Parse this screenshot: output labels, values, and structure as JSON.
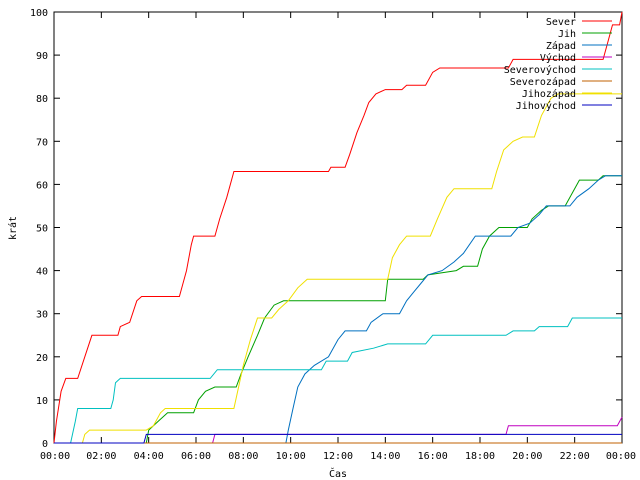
{
  "chart_data": {
    "type": "line",
    "xlabel": "Čas",
    "ylabel": "krát",
    "xlim": [
      0,
      24
    ],
    "ylim": [
      0,
      100
    ],
    "x_ticks": [
      "00:00",
      "02:00",
      "04:00",
      "06:00",
      "08:00",
      "10:00",
      "12:00",
      "14:00",
      "16:00",
      "18:00",
      "20:00",
      "22:00",
      "00:00"
    ],
    "y_ticks": [
      "0",
      "10",
      "20",
      "30",
      "40",
      "50",
      "60",
      "70",
      "80",
      "90",
      "100"
    ],
    "grid": false,
    "legend_position": "top-right",
    "series": [
      {
        "name": "Sever",
        "color": "#ff0000",
        "points": [
          [
            0,
            0
          ],
          [
            0.1,
            5
          ],
          [
            0.3,
            12
          ],
          [
            0.5,
            15
          ],
          [
            1.0,
            15
          ],
          [
            1.3,
            20
          ],
          [
            1.6,
            25
          ],
          [
            2.7,
            25
          ],
          [
            2.8,
            27
          ],
          [
            3.2,
            28
          ],
          [
            3.5,
            33
          ],
          [
            3.7,
            34
          ],
          [
            5.3,
            34
          ],
          [
            5.6,
            40
          ],
          [
            5.8,
            46
          ],
          [
            5.9,
            48
          ],
          [
            6.8,
            48
          ],
          [
            7.0,
            52
          ],
          [
            7.3,
            57
          ],
          [
            7.6,
            63
          ],
          [
            11.6,
            63
          ],
          [
            11.7,
            64
          ],
          [
            12.3,
            64
          ],
          [
            12.5,
            67
          ],
          [
            12.8,
            72
          ],
          [
            13.1,
            76
          ],
          [
            13.3,
            79
          ],
          [
            13.6,
            81
          ],
          [
            14.0,
            82
          ],
          [
            14.7,
            82
          ],
          [
            14.9,
            83
          ],
          [
            15.7,
            83
          ],
          [
            16.0,
            86
          ],
          [
            16.3,
            87
          ],
          [
            19.2,
            87
          ],
          [
            19.4,
            89
          ],
          [
            23.2,
            89
          ],
          [
            23.4,
            93
          ],
          [
            23.6,
            97
          ],
          [
            23.9,
            97
          ],
          [
            24,
            100
          ]
        ]
      },
      {
        "name": "Jih",
        "color": "#00a000",
        "points": [
          [
            0,
            0
          ],
          [
            3.9,
            0
          ],
          [
            4.0,
            3
          ],
          [
            4.4,
            5
          ],
          [
            4.8,
            7
          ],
          [
            5.9,
            7
          ],
          [
            6.1,
            10
          ],
          [
            6.4,
            12
          ],
          [
            6.8,
            13
          ],
          [
            7.7,
            13
          ],
          [
            7.9,
            16
          ],
          [
            8.2,
            20
          ],
          [
            8.6,
            25
          ],
          [
            8.9,
            29
          ],
          [
            9.3,
            32
          ],
          [
            9.7,
            33
          ],
          [
            14.0,
            33
          ],
          [
            14.1,
            38
          ],
          [
            15.6,
            38
          ],
          [
            15.8,
            39
          ],
          [
            17.0,
            40
          ],
          [
            17.3,
            41
          ],
          [
            17.9,
            41
          ],
          [
            18.1,
            45
          ],
          [
            18.4,
            48
          ],
          [
            18.8,
            50
          ],
          [
            20.0,
            50
          ],
          [
            20.2,
            52
          ],
          [
            20.6,
            54
          ],
          [
            20.9,
            55
          ],
          [
            21.6,
            55
          ],
          [
            21.9,
            58
          ],
          [
            22.2,
            61
          ],
          [
            23.0,
            61
          ],
          [
            23.2,
            62
          ],
          [
            24,
            62
          ]
        ]
      },
      {
        "name": "Západ",
        "color": "#0070c0",
        "points": [
          [
            0,
            0
          ],
          [
            9.8,
            0
          ],
          [
            9.9,
            3
          ],
          [
            10.1,
            8
          ],
          [
            10.3,
            13
          ],
          [
            10.6,
            16
          ],
          [
            11.0,
            18
          ],
          [
            11.6,
            20
          ],
          [
            12.0,
            24
          ],
          [
            12.3,
            26
          ],
          [
            13.2,
            26
          ],
          [
            13.4,
            28
          ],
          [
            13.9,
            30
          ],
          [
            14.6,
            30
          ],
          [
            14.9,
            33
          ],
          [
            15.2,
            35
          ],
          [
            15.5,
            37
          ],
          [
            15.8,
            39
          ],
          [
            16.4,
            40
          ],
          [
            16.9,
            42
          ],
          [
            17.3,
            44
          ],
          [
            17.8,
            48
          ],
          [
            19.3,
            48
          ],
          [
            19.6,
            50
          ],
          [
            20.1,
            51
          ],
          [
            20.5,
            53
          ],
          [
            20.8,
            55
          ],
          [
            21.8,
            55
          ],
          [
            22.1,
            57
          ],
          [
            22.6,
            59
          ],
          [
            23.0,
            61
          ],
          [
            23.3,
            62
          ],
          [
            24,
            62
          ]
        ]
      },
      {
        "name": "Východ",
        "color": "#c000c0",
        "points": [
          [
            0,
            0
          ],
          [
            6.7,
            0
          ],
          [
            6.8,
            2
          ],
          [
            19.1,
            2
          ],
          [
            19.2,
            4
          ],
          [
            23.8,
            4
          ],
          [
            24,
            6
          ]
        ]
      },
      {
        "name": "Severovýchod",
        "color": "#00c0c0",
        "points": [
          [
            0,
            0
          ],
          [
            0.7,
            0
          ],
          [
            0.9,
            5
          ],
          [
            1.0,
            8
          ],
          [
            2.4,
            8
          ],
          [
            2.5,
            10
          ],
          [
            2.6,
            14
          ],
          [
            2.8,
            15
          ],
          [
            6.6,
            15
          ],
          [
            6.9,
            17
          ],
          [
            11.3,
            17
          ],
          [
            11.5,
            19
          ],
          [
            12.4,
            19
          ],
          [
            12.6,
            21
          ],
          [
            13.5,
            22
          ],
          [
            14.1,
            23
          ],
          [
            15.7,
            23
          ],
          [
            16.0,
            25
          ],
          [
            19.1,
            25
          ],
          [
            19.4,
            26
          ],
          [
            20.3,
            26
          ],
          [
            20.5,
            27
          ],
          [
            21.7,
            27
          ],
          [
            21.9,
            29
          ],
          [
            24,
            29
          ]
        ]
      },
      {
        "name": "Severozápad",
        "color": "#c06000",
        "points": [
          [
            0,
            0
          ],
          [
            24,
            0
          ]
        ]
      },
      {
        "name": "Jihozápad",
        "color": "#f0e000",
        "points": [
          [
            0,
            0
          ],
          [
            1.2,
            0
          ],
          [
            1.3,
            2
          ],
          [
            1.5,
            3
          ],
          [
            3.9,
            3
          ],
          [
            4.2,
            4
          ],
          [
            4.5,
            7
          ],
          [
            4.7,
            8
          ],
          [
            7.6,
            8
          ],
          [
            7.8,
            13
          ],
          [
            8.0,
            18
          ],
          [
            8.3,
            24
          ],
          [
            8.6,
            29
          ],
          [
            9.2,
            29
          ],
          [
            9.5,
            31
          ],
          [
            9.9,
            33
          ],
          [
            10.3,
            36
          ],
          [
            10.7,
            38
          ],
          [
            14.1,
            38
          ],
          [
            14.3,
            43
          ],
          [
            14.6,
            46
          ],
          [
            14.9,
            48
          ],
          [
            15.9,
            48
          ],
          [
            16.2,
            52
          ],
          [
            16.6,
            57
          ],
          [
            16.9,
            59
          ],
          [
            18.5,
            59
          ],
          [
            18.7,
            63
          ],
          [
            19.0,
            68
          ],
          [
            19.4,
            70
          ],
          [
            19.8,
            71
          ],
          [
            20.3,
            71
          ],
          [
            20.6,
            76
          ],
          [
            21.0,
            80
          ],
          [
            21.3,
            81
          ],
          [
            24,
            81
          ]
        ]
      },
      {
        "name": "Jihovýchod",
        "color": "#0000c0",
        "points": [
          [
            0,
            0
          ],
          [
            3.8,
            0
          ],
          [
            3.9,
            2
          ],
          [
            9.7,
            2
          ],
          [
            24,
            2
          ]
        ]
      }
    ]
  }
}
